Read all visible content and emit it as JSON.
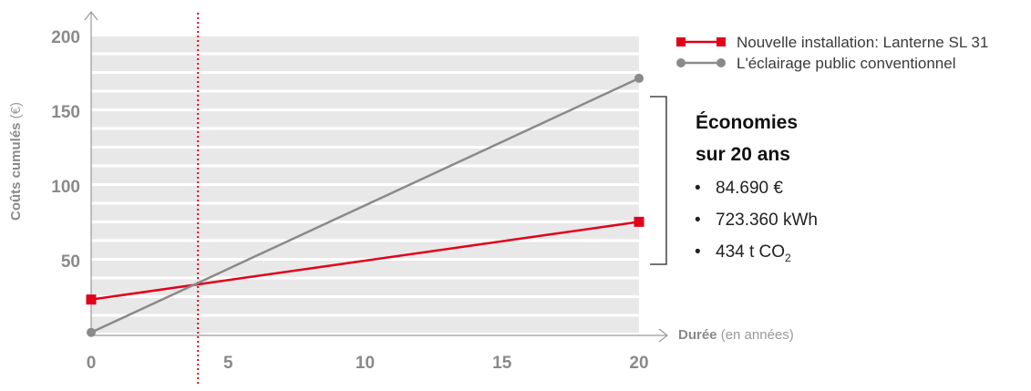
{
  "chart_data": {
    "type": "line",
    "xlabel": {
      "bold": "Durée",
      "unit": "(en années)"
    },
    "ylabel": {
      "bold": "Coûts cumulés",
      "unit": "(€)"
    },
    "xlim": [
      0,
      20
    ],
    "ylim": [
      0,
      200
    ],
    "x_ticks": [
      0,
      5,
      10,
      15,
      20
    ],
    "y_ticks": [
      50,
      100,
      150,
      200
    ],
    "break_even_x": 3.9,
    "series": [
      {
        "name": "Nouvelle installation: Lanterne SL 31",
        "color": "#e2001a",
        "marker": "square",
        "points": [
          [
            0,
            24
          ],
          [
            20,
            76
          ]
        ]
      },
      {
        "name": "L'éclairage public conventionnel",
        "color": "#8a8a8a",
        "marker": "circle",
        "points": [
          [
            0,
            2
          ],
          [
            20,
            172
          ]
        ]
      }
    ],
    "legend_position": "top-right",
    "grid": "horizontal bands"
  },
  "savings": {
    "title_line1": "Économies",
    "title_line2": "sur 20 ans",
    "bullet": "•",
    "items": [
      {
        "text": "84.690 €"
      },
      {
        "text": "723.360 kWh"
      },
      {
        "text": "434 t CO",
        "subscript": "2"
      }
    ]
  }
}
